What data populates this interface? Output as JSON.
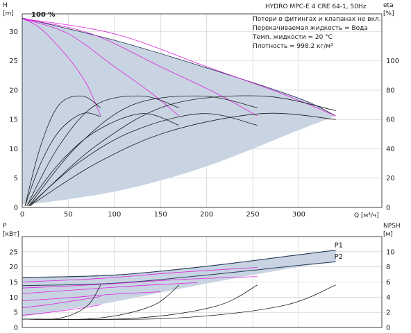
{
  "chart_data": [
    {
      "type": "line",
      "title": "HYDRO MPC-E 4 CRE 64-1, 50Hz",
      "annotation": "100 %",
      "info_lines": [
        "Потери в фитингах и клапанах не вкл.",
        "Перекачиваемая жидкость = Вода",
        "Темп. жидкости = 20 °C",
        "Плотность = 998.2 кг/м³"
      ],
      "xlabel": "Q [м³/ч]",
      "ylabel_left": "H\n[m]",
      "ylabel_right": "eta\n[%]",
      "xlim": [
        0,
        390
      ],
      "ylim_left": [
        0,
        33
      ],
      "ylim_right": [
        0,
        132
      ],
      "x_ticks": [
        0,
        50,
        100,
        150,
        200,
        250,
        300
      ],
      "y_ticks_left": [
        0,
        5,
        10,
        15,
        20,
        25,
        30
      ],
      "y_ticks_right": [
        0,
        20,
        40,
        60,
        80,
        100
      ],
      "envelope_top": {
        "x": [
          0,
          100,
          200,
          300,
          340
        ],
        "y": [
          32.3,
          28.5,
          23.8,
          18.6,
          15.6
        ]
      },
      "envelope_bottom": {
        "x": [
          340,
          300,
          250,
          200,
          150,
          100,
          50,
          20,
          0
        ],
        "y": [
          15.6,
          13.2,
          10.0,
          7.0,
          4.6,
          2.7,
          1.4,
          0.8,
          0.6
        ]
      },
      "series": [
        {
          "group": "head_100",
          "color": "#e020e0",
          "x": [
            0,
            20,
            50,
            70,
            85
          ],
          "y": [
            32.2,
            30.5,
            25.5,
            21.0,
            15.6
          ]
        },
        {
          "group": "head_100",
          "color": "#e020e0",
          "x": [
            0,
            50,
            100,
            140,
            170
          ],
          "y": [
            32.2,
            29.6,
            24.0,
            19.5,
            15.6
          ]
        },
        {
          "group": "head_100",
          "color": "#e020e0",
          "x": [
            0,
            75,
            150,
            210,
            255
          ],
          "y": [
            32.2,
            29.6,
            24.0,
            19.5,
            15.6
          ]
        },
        {
          "group": "head_100",
          "color": "#e020e0",
          "x": [
            0,
            100,
            200,
            280,
            340
          ],
          "y": [
            32.2,
            29.6,
            24.0,
            19.5,
            15.6
          ]
        },
        {
          "group": "efficiency",
          "color": "#1a1a1a",
          "x": [
            3,
            20,
            40,
            65,
            85
          ],
          "y": [
            1,
            42,
            70,
            76,
            68
          ]
        },
        {
          "group": "efficiency",
          "color": "#1a1a1a",
          "x": [
            3,
            20,
            40,
            65,
            85
          ],
          "y": [
            1,
            30,
            52,
            64,
            62
          ]
        },
        {
          "group": "efficiency",
          "color": "#1a1a1a",
          "x": [
            5,
            40,
            80,
            130,
            170
          ],
          "y": [
            1,
            42,
            70,
            76,
            68
          ]
        },
        {
          "group": "efficiency",
          "color": "#1a1a1a",
          "x": [
            5,
            40,
            80,
            130,
            170
          ],
          "y": [
            1,
            30,
            52,
            64,
            56
          ]
        },
        {
          "group": "efficiency",
          "color": "#1a1a1a",
          "x": [
            7,
            60,
            120,
            195,
            255
          ],
          "y": [
            1,
            42,
            70,
            76,
            68
          ]
        },
        {
          "group": "efficiency",
          "color": "#1a1a1a",
          "x": [
            7,
            60,
            120,
            195,
            255
          ],
          "y": [
            1,
            30,
            52,
            64,
            56
          ]
        },
        {
          "group": "efficiency",
          "color": "#1a1a1a",
          "x": [
            8,
            80,
            160,
            260,
            340
          ],
          "y": [
            1,
            42,
            70,
            76,
            66
          ]
        },
        {
          "group": "efficiency",
          "color": "#1a1a1a",
          "x": [
            8,
            80,
            160,
            260,
            340
          ],
          "y": [
            1,
            30,
            52,
            64,
            60
          ]
        }
      ]
    },
    {
      "type": "line",
      "xlim": [
        0,
        390
      ],
      "ylabel_left": "P\n[кВт]",
      "ylabel_right": "NPSH\n[м]",
      "ylim_left": [
        0,
        30
      ],
      "ylim_right": [
        0,
        12
      ],
      "x_ticks": [
        0,
        50,
        100,
        150,
        200,
        250,
        300
      ],
      "y_ticks_left": [
        0,
        5,
        10,
        15,
        20,
        25
      ],
      "y_ticks_right": [
        0,
        2,
        4,
        6,
        8,
        10
      ],
      "envelope_top": {
        "x": [
          0,
          100,
          200,
          300,
          340
        ],
        "y": [
          16.5,
          17.3,
          20.2,
          24.0,
          25.5
        ]
      },
      "envelope_bottom": {
        "x": [
          340,
          300,
          200,
          100,
          50,
          20,
          0
        ],
        "y": [
          21.5,
          20.0,
          14.5,
          8.5,
          6.0,
          4.5,
          3.5
        ]
      },
      "series": [
        {
          "name": "P1",
          "group": "power_total",
          "color": "#2a3b5a",
          "x": [
            0,
            100,
            200,
            300,
            340
          ],
          "y": [
            16.5,
            17.3,
            20.2,
            24.0,
            25.5
          ]
        },
        {
          "name": "P2",
          "group": "power_total",
          "color": "#2a3b5a",
          "x": [
            0,
            100,
            200,
            300,
            340
          ],
          "y": [
            13.8,
            14.6,
            17.3,
            20.5,
            21.7
          ]
        },
        {
          "group": "power",
          "color": "#e020e0",
          "x": [
            0,
            85,
            170,
            255
          ],
          "y": [
            15.0,
            16.2,
            18.2,
            19.8
          ]
        },
        {
          "group": "power",
          "color": "#e020e0",
          "x": [
            0,
            85,
            170,
            255
          ],
          "y": [
            13.0,
            14.2,
            15.8,
            16.8
          ]
        },
        {
          "group": "power",
          "color": "#e020e0",
          "x": [
            0,
            63,
            127,
            190
          ],
          "y": [
            11.2,
            12.5,
            13.8,
            14.8
          ]
        },
        {
          "group": "power",
          "color": "#e020e0",
          "x": [
            0,
            50,
            100,
            150
          ],
          "y": [
            8.8,
            9.8,
            11.0,
            11.8
          ]
        },
        {
          "group": "power",
          "color": "#e020e0",
          "x": [
            0,
            30,
            60,
            85
          ],
          "y": [
            6.5,
            7.6,
            9.0,
            10.2
          ]
        },
        {
          "group": "power",
          "color": "#e020e0",
          "x": [
            0,
            30,
            60,
            85
          ],
          "y": [
            4.0,
            5.0,
            6.2,
            7.5
          ]
        },
        {
          "group": "npsh",
          "color": "#1a1a1a",
          "x": [
            0,
            40,
            70,
            85
          ],
          "y": [
            1.1,
            1.2,
            2.8,
            5.6
          ]
        },
        {
          "group": "npsh",
          "color": "#1a1a1a",
          "x": [
            0,
            80,
            140,
            170
          ],
          "y": [
            1.1,
            1.2,
            2.8,
            5.6
          ]
        },
        {
          "group": "npsh",
          "color": "#1a1a1a",
          "x": [
            0,
            120,
            210,
            255
          ],
          "y": [
            1.1,
            1.2,
            2.8,
            5.6
          ]
        },
        {
          "group": "npsh",
          "color": "#1a1a1a",
          "x": [
            0,
            160,
            280,
            340
          ],
          "y": [
            1.1,
            1.2,
            2.8,
            5.6
          ]
        }
      ]
    }
  ],
  "colors": {
    "envelope_fill": "#c8d4e2",
    "envelope_stroke": "#2a3b5a",
    "magenta": "#e020e0",
    "black": "#1a1a1a",
    "grid": "#c8c8c8"
  }
}
